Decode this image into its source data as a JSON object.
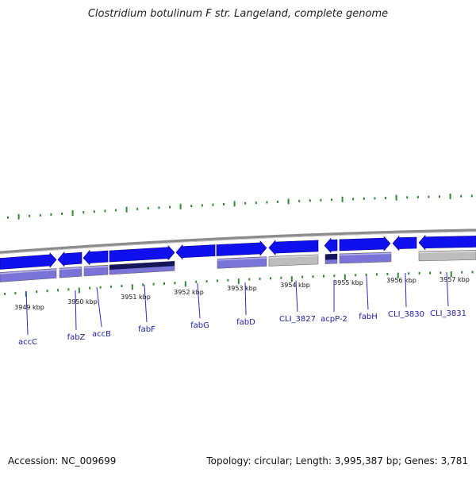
{
  "title": "Clostridium botulinum F str. Langeland, complete genome",
  "footer": {
    "accession": "Accession: NC_009699",
    "summary": "Topology: circular; Length: 3,995,387 bp; Genes: 3,781"
  },
  "colors": {
    "gene_blue": "#1010ee",
    "gene_outline": "#00008b",
    "product_purple": "#7b74d8",
    "product_dark_navy": "#15155a",
    "product_gray": "#bdbdbd",
    "backbone_gray": "#8a8a8a",
    "tick_green": "#2e8b2e",
    "label_blue": "#1a1aa8",
    "leader_blue": "#2a2acc"
  },
  "scale_labels": [
    "3949 kbp",
    "3950 kbp",
    "3951 kbp",
    "3952 kbp",
    "3953 kbp",
    "3954 kbp",
    "3955 kbp",
    "3956 kbp",
    "3957 kbp"
  ],
  "genes": [
    {
      "name": "accC",
      "strand": "+"
    },
    {
      "name": "fabZ",
      "strand": "-"
    },
    {
      "name": "accB",
      "strand": "-"
    },
    {
      "name": "fabF",
      "strand": "+"
    },
    {
      "name": "fabG",
      "strand": "-"
    },
    {
      "name": "fabD",
      "strand": "+"
    },
    {
      "name": "CLI_3827",
      "strand": "-"
    },
    {
      "name": "acpP-2",
      "strand": "-"
    },
    {
      "name": "fabH",
      "strand": "+"
    },
    {
      "name": "CLI_3830",
      "strand": "-"
    },
    {
      "name": "CLI_3831",
      "strand": "-"
    }
  ]
}
